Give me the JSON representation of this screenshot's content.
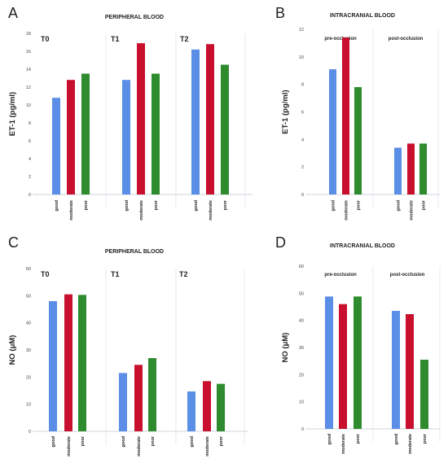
{
  "palette": {
    "good": "#5b8ee6",
    "moderate": "#c8102e",
    "poor": "#2e8b2e",
    "grid": "#dde3ea",
    "axis": "#bfc6cf",
    "text": "#222222"
  },
  "chart_data": [
    {
      "panel_letter": "A",
      "type": "bar",
      "title": "PERIPHERAL BLOOD",
      "ylabel": "ET-1 (pg/ml)",
      "ylim": [
        0,
        18
      ],
      "yticks": [
        0,
        2,
        4,
        6,
        8,
        10,
        12,
        14,
        16,
        18
      ],
      "grid": false,
      "categories": [
        "good",
        "moderate",
        "poor"
      ],
      "groups": [
        {
          "label": "T0",
          "values": [
            10.8,
            12.8,
            13.5
          ]
        },
        {
          "label": "T1",
          "values": [
            12.8,
            16.9,
            13.5
          ]
        },
        {
          "label": "T2",
          "values": [
            16.2,
            16.8,
            14.5
          ]
        }
      ]
    },
    {
      "panel_letter": "B",
      "type": "bar",
      "title": "INTRACRANIAL BLOOD",
      "ylabel": "ET-1 (pg/ml)",
      "ylim": [
        0,
        12
      ],
      "yticks": [
        0,
        2,
        4,
        6,
        8,
        10,
        12
      ],
      "grid": false,
      "categories": [
        "good",
        "moderate",
        "poor"
      ],
      "groups": [
        {
          "label": "pre-occlusion",
          "values": [
            9.1,
            11.4,
            7.8
          ]
        },
        {
          "label": "post-occlusion",
          "values": [
            3.4,
            3.7,
            3.7
          ]
        }
      ]
    },
    {
      "panel_letter": "C",
      "type": "bar",
      "title": "PERIPHERAL BLOOD",
      "ylabel": "NO (μM)",
      "ylim": [
        0,
        60
      ],
      "yticks": [
        0,
        10,
        20,
        30,
        40,
        50,
        60
      ],
      "grid": false,
      "categories": [
        "good",
        "moderate",
        "poor"
      ],
      "groups": [
        {
          "label": "T0",
          "values": [
            48.0,
            50.5,
            50.3
          ]
        },
        {
          "label": "T1",
          "values": [
            21.5,
            24.5,
            27.0
          ]
        },
        {
          "label": "T2",
          "values": [
            14.7,
            18.5,
            17.5
          ]
        }
      ]
    },
    {
      "panel_letter": "D",
      "type": "bar",
      "title": "INTRACRANIAL BLOOD",
      "ylabel": "NO (μM)",
      "ylim": [
        0,
        60
      ],
      "yticks": [
        0,
        10,
        20,
        30,
        40,
        50,
        60
      ],
      "grid": false,
      "categories": [
        "good",
        "moderate",
        "poor"
      ],
      "groups": [
        {
          "label": "pre-occlusion",
          "values": [
            48.8,
            46.0,
            48.8
          ]
        },
        {
          "label": "post-occlusion",
          "values": [
            43.5,
            42.3,
            25.5
          ]
        }
      ]
    }
  ]
}
